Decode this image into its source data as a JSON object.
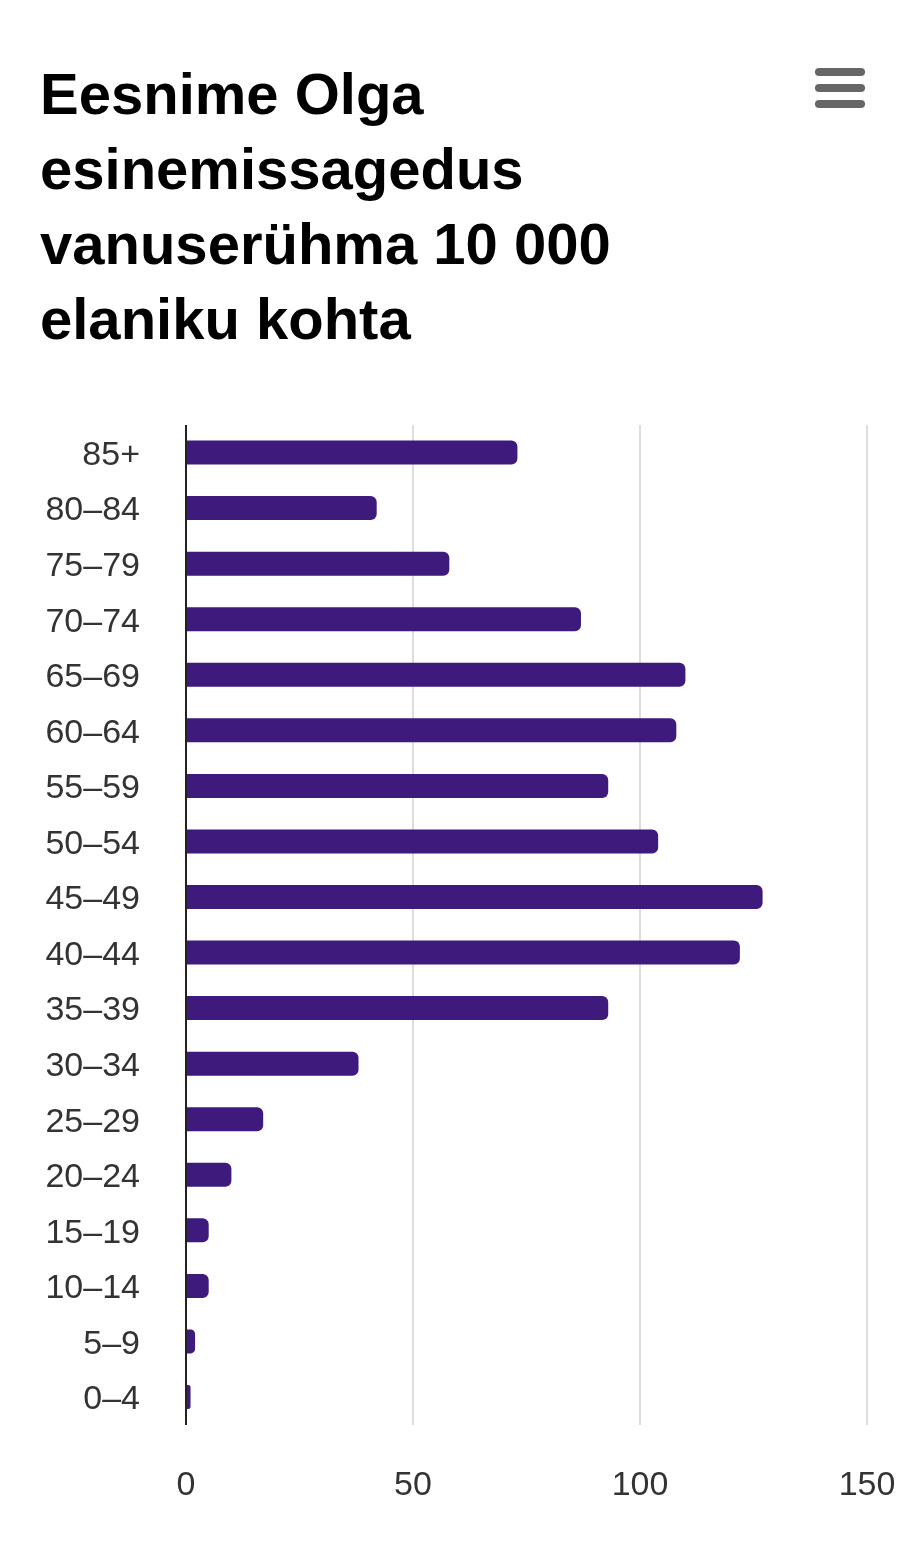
{
  "chart_data": {
    "type": "bar",
    "orientation": "horizontal",
    "title": "Eesnime Olga esinemissagedus vanuserühma 10 000 elaniku kohta",
    "categories": [
      "85+",
      "80–84",
      "75–79",
      "70–74",
      "65–69",
      "60–64",
      "55–59",
      "50–54",
      "45–49",
      "40–44",
      "35–39",
      "30–34",
      "25–29",
      "20–24",
      "15–19",
      "10–14",
      "5–9",
      "0–4"
    ],
    "values": [
      73,
      42,
      58,
      87,
      110,
      108,
      93,
      104,
      127,
      122,
      93,
      38,
      17,
      10,
      5,
      5,
      2,
      1
    ],
    "color": "#3d1a7b",
    "xlim": [
      0,
      150
    ],
    "xticks": [
      0,
      50,
      100,
      150
    ],
    "grid": "x",
    "legend": false
  }
}
